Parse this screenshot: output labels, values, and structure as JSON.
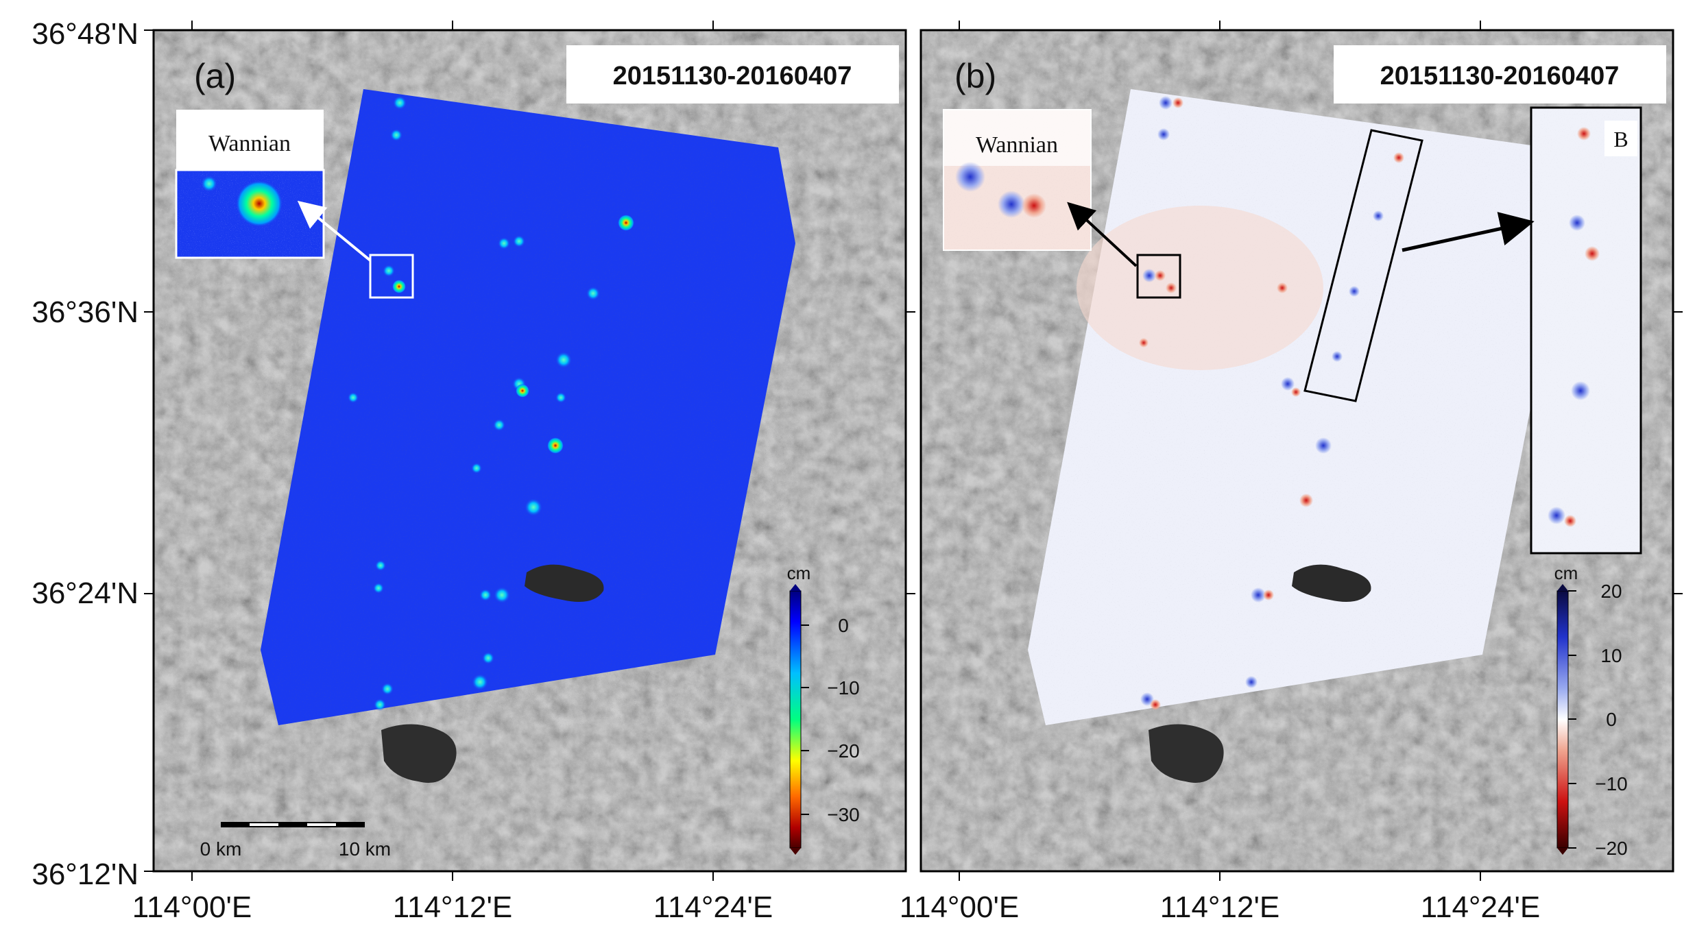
{
  "panels": [
    {
      "id": "a",
      "label": "(a)",
      "date_range": "20151130-20160407",
      "inset_title": "Wannian",
      "colorbar": {
        "unit": "cm",
        "ticks": [
          "0",
          "−10",
          "−20",
          "−30"
        ],
        "scheme": "jet",
        "colors": [
          "#00007f",
          "#0000ff",
          "#00bfff",
          "#00ff80",
          "#ffff00",
          "#ff6a00",
          "#b00000",
          "#4a0000"
        ]
      },
      "scale_bar": {
        "start": "0 km",
        "end": "10 km"
      }
    },
    {
      "id": "b",
      "label": "(b)",
      "date_range": "20151130-20160407",
      "inset_title": "Wannian",
      "inset_b_title": "B",
      "colorbar": {
        "unit": "cm",
        "ticks": [
          "20",
          "10",
          "0",
          "−10",
          "−20"
        ],
        "scheme": "diverging",
        "colors": [
          "#0a0a40",
          "#2233cc",
          "#99aaf0",
          "#ffffff",
          "#f0a590",
          "#cc1111",
          "#3a0000"
        ]
      }
    }
  ],
  "axes": {
    "lat_labels": [
      "36°48'N",
      "36°36'N",
      "36°24'N",
      "36°12'N"
    ],
    "lon_labels": [
      "114°00'E",
      "114°12'E",
      "114°24'E"
    ]
  },
  "colors": {
    "background_sar": "#8a8a8a",
    "deformation_blue": "#1a3af0",
    "lake": "#2a2a2a"
  }
}
